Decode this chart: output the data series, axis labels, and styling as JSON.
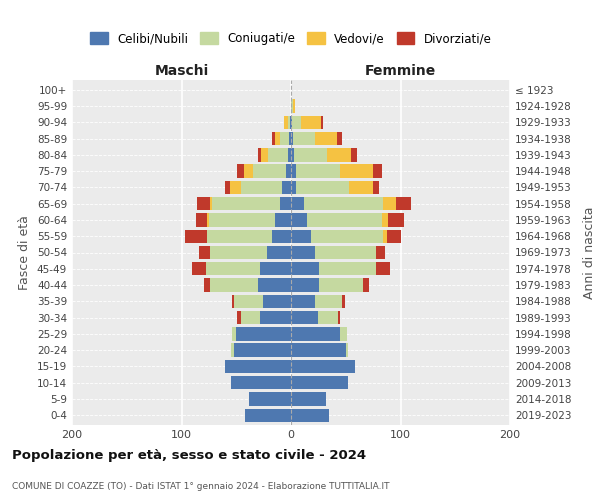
{
  "age_groups": [
    "0-4",
    "5-9",
    "10-14",
    "15-19",
    "20-24",
    "25-29",
    "30-34",
    "35-39",
    "40-44",
    "45-49",
    "50-54",
    "55-59",
    "60-64",
    "65-69",
    "70-74",
    "75-79",
    "80-84",
    "85-89",
    "90-94",
    "95-99",
    "100+"
  ],
  "birth_years": [
    "2019-2023",
    "2014-2018",
    "2009-2013",
    "2004-2008",
    "1999-2003",
    "1994-1998",
    "1989-1993",
    "1984-1988",
    "1979-1983",
    "1974-1978",
    "1969-1973",
    "1964-1968",
    "1959-1963",
    "1954-1958",
    "1949-1953",
    "1944-1948",
    "1939-1943",
    "1934-1938",
    "1929-1933",
    "1924-1928",
    "≤ 1923"
  ],
  "colors": {
    "celibe": "#4e78b0",
    "coniugato": "#c5d9a0",
    "vedovo": "#f5c242",
    "divorziato": "#c0392b"
  },
  "maschi": {
    "celibe": [
      42,
      38,
      55,
      60,
      52,
      50,
      28,
      26,
      30,
      28,
      22,
      17,
      15,
      10,
      8,
      5,
      3,
      2,
      1,
      0,
      0
    ],
    "coniugato": [
      0,
      0,
      0,
      0,
      3,
      4,
      18,
      26,
      44,
      50,
      52,
      60,
      60,
      62,
      38,
      30,
      18,
      8,
      2,
      0,
      0
    ],
    "vedovo": [
      0,
      0,
      0,
      0,
      0,
      0,
      0,
      0,
      0,
      0,
      0,
      0,
      2,
      2,
      10,
      8,
      6,
      5,
      3,
      0,
      0
    ],
    "divorziato": [
      0,
      0,
      0,
      0,
      0,
      0,
      3,
      2,
      5,
      12,
      10,
      20,
      10,
      12,
      4,
      6,
      3,
      2,
      0,
      0,
      0
    ]
  },
  "femmine": {
    "celibe": [
      35,
      32,
      52,
      58,
      50,
      45,
      25,
      22,
      26,
      26,
      22,
      18,
      15,
      12,
      5,
      5,
      3,
      2,
      1,
      0,
      0
    ],
    "coniugato": [
      0,
      0,
      0,
      0,
      2,
      6,
      18,
      25,
      40,
      52,
      56,
      66,
      68,
      72,
      48,
      40,
      30,
      20,
      8,
      2,
      0
    ],
    "vedovo": [
      0,
      0,
      0,
      0,
      0,
      0,
      0,
      0,
      0,
      0,
      0,
      4,
      6,
      12,
      22,
      30,
      22,
      20,
      18,
      2,
      0
    ],
    "divorziato": [
      0,
      0,
      0,
      0,
      0,
      0,
      2,
      2,
      5,
      12,
      8,
      12,
      14,
      14,
      5,
      8,
      5,
      5,
      2,
      0,
      0
    ]
  },
  "xlim": 200,
  "title": "Popolazione per età, sesso e stato civile - 2024",
  "subtitle": "COMUNE DI COAZZE (TO) - Dati ISTAT 1° gennaio 2024 - Elaborazione TUTTITALIA.IT",
  "xlabel_left": "Maschi",
  "xlabel_right": "Femmine",
  "ylabel_left": "Fasce di età",
  "ylabel_right": "Anni di nascita",
  "legend_labels": [
    "Celibi/Nubili",
    "Coniugati/e",
    "Vedovi/e",
    "Divorziati/e"
  ],
  "background_color": "#ffffff",
  "plot_bg_color": "#ebebeb"
}
